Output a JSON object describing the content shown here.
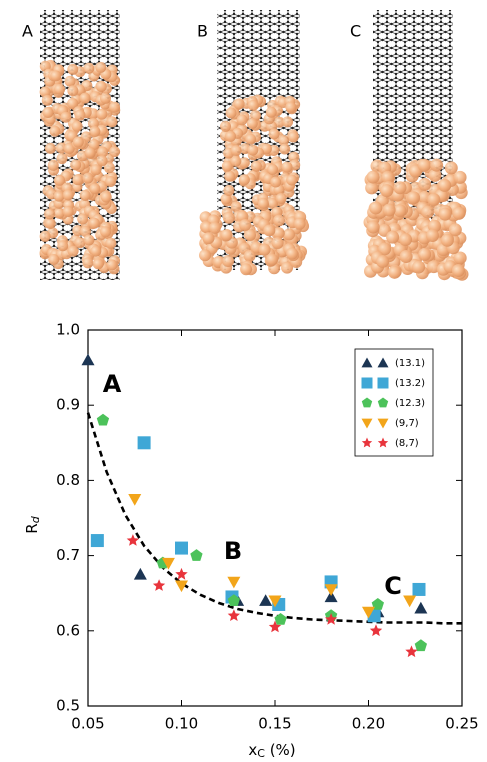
{
  "figure": {
    "panel_labels": [
      "A",
      "B",
      "C"
    ]
  },
  "chart_data": {
    "type": "scatter",
    "x_label": [
      "x",
      "C",
      " (%)"
    ],
    "y_label": [
      "R",
      "d"
    ],
    "xlim": [
      0.05,
      0.25
    ],
    "xticks": [
      {
        "value": 0.05,
        "label": "0.05"
      },
      {
        "value": 0.1,
        "label": "0.10"
      },
      {
        "value": 0.15,
        "label": "0.15"
      },
      {
        "value": 0.2,
        "label": "0.20"
      },
      {
        "value": 0.25,
        "label": "0.25"
      }
    ],
    "ylim": [
      0.5,
      1.0
    ],
    "yticks": [
      {
        "value": 0.5,
        "label": "0.5"
      },
      0.6,
      0.7,
      0.8,
      0.9,
      {
        "value": 1.0,
        "label": "1.0"
      }
    ],
    "legend": "upper right",
    "annotations": [
      "A",
      "B",
      "C"
    ],
    "series": [
      {
        "name": "(13.1)",
        "color": "#1c3553",
        "marker": "triangle-up",
        "x": [
          0.05,
          0.078,
          0.13,
          0.145,
          0.18,
          0.205,
          0.228
        ],
        "values": [
          0.96,
          0.675,
          0.64,
          0.64,
          0.645,
          0.625,
          0.63
        ]
      },
      {
        "name": "(13.2)",
        "color": "#3fa7d6",
        "marker": "square",
        "x": [
          0.055,
          0.08,
          0.1,
          0.127,
          0.152,
          0.18,
          0.203,
          0.227
        ],
        "values": [
          0.72,
          0.85,
          0.71,
          0.645,
          0.635,
          0.665,
          0.62,
          0.655
        ]
      },
      {
        "name": "(12.3)",
        "color": "#4cc25a",
        "marker": "pentagon",
        "x": [
          0.058,
          0.09,
          0.108,
          0.128,
          0.153,
          0.18,
          0.205,
          0.228
        ],
        "values": [
          0.88,
          0.69,
          0.7,
          0.64,
          0.615,
          0.62,
          0.635,
          0.58
        ]
      },
      {
        "name": "(9,7)",
        "color": "#f2a51a",
        "marker": "triangle-down",
        "x": [
          0.075,
          0.093,
          0.1,
          0.128,
          0.15,
          0.18,
          0.2,
          0.222
        ],
        "values": [
          0.775,
          0.69,
          0.66,
          0.665,
          0.64,
          0.655,
          0.625,
          0.64
        ]
      },
      {
        "name": "(8,7)",
        "color": "#e8343c",
        "marker": "star",
        "x": [
          0.074,
          0.088,
          0.1,
          0.128,
          0.15,
          0.18,
          0.204,
          0.223
        ],
        "values": [
          0.72,
          0.66,
          0.675,
          0.62,
          0.605,
          0.615,
          0.6,
          0.572
        ]
      }
    ],
    "fit": {
      "x": [
        0.05,
        0.06,
        0.07,
        0.08,
        0.09,
        0.1,
        0.11,
        0.12,
        0.13,
        0.14,
        0.15,
        0.16,
        0.17,
        0.18,
        0.19,
        0.2,
        0.21,
        0.22,
        0.23,
        0.24,
        0.25
      ],
      "y": [
        0.89,
        0.811,
        0.754,
        0.713,
        0.684,
        0.663,
        0.648,
        0.637,
        0.629,
        0.624,
        0.62,
        0.617,
        0.615,
        0.614,
        0.613,
        0.612,
        0.611,
        0.611,
        0.611,
        0.61,
        0.61
      ]
    }
  }
}
